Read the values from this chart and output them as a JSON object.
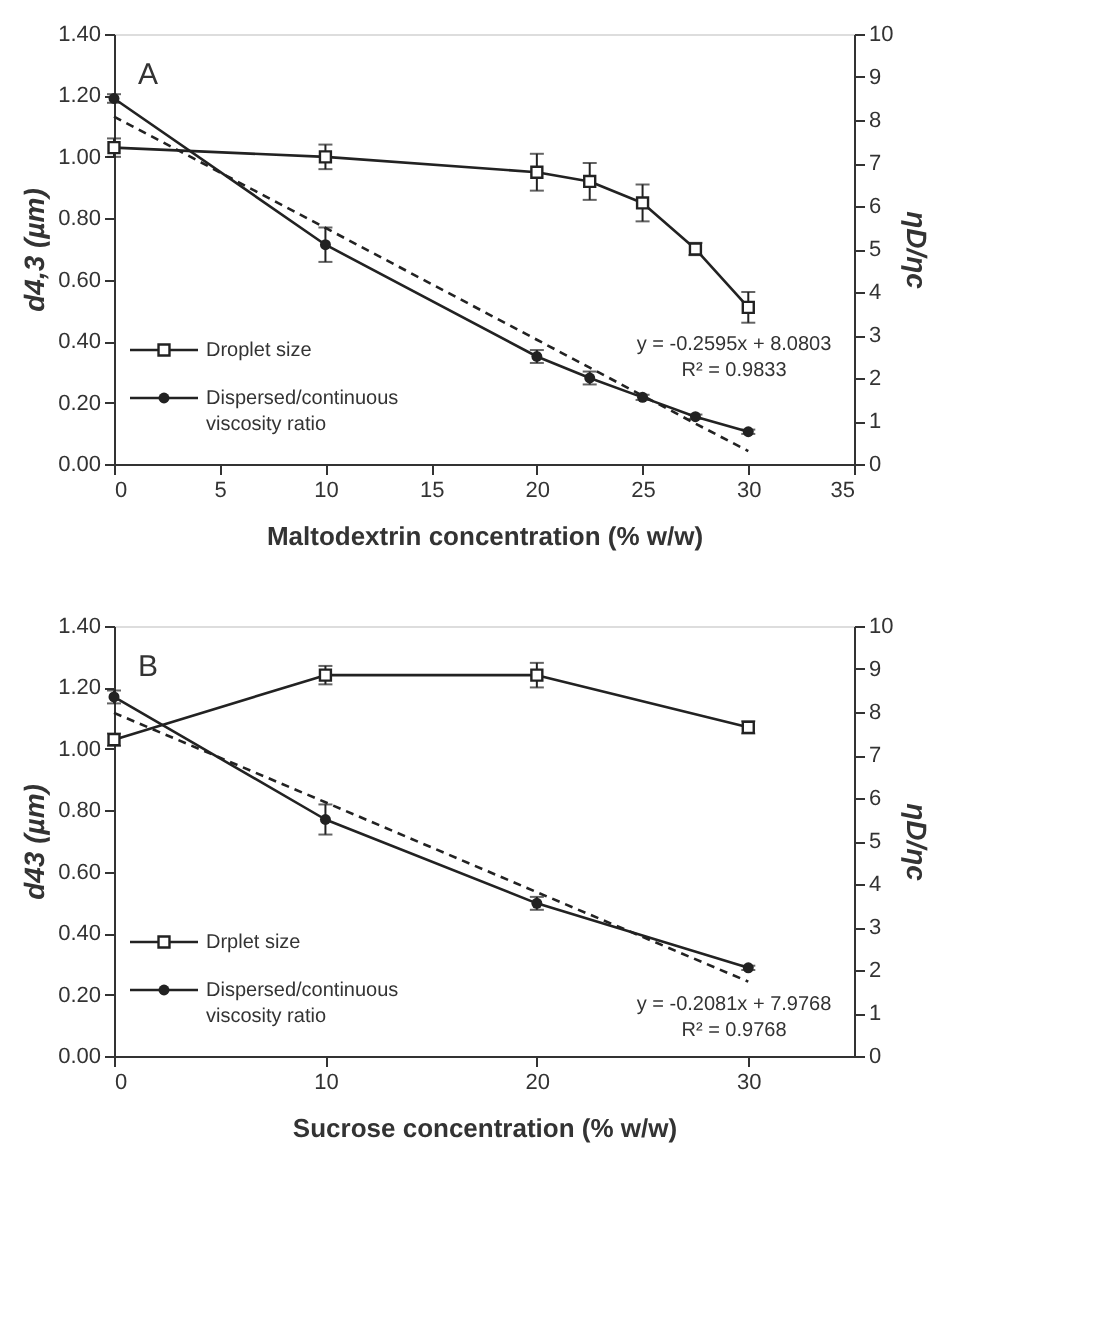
{
  "chart_data": [
    {
      "type": "line",
      "xlabel": "Maltodextrin concentration (% w/w)",
      "ylabel": "d4,3 (µm)",
      "y2label": "ηD/ηc",
      "x": [
        0,
        10,
        20,
        22.5,
        25,
        27.5,
        30
      ],
      "xlim": [
        0,
        35
      ],
      "xticks": [
        0,
        5,
        10,
        15,
        20,
        25,
        30,
        35
      ],
      "ylim": [
        0,
        1.4
      ],
      "yticks": [
        {
          "value": 0,
          "label": "0.00"
        },
        {
          "value": 0.2,
          "label": "0.20"
        },
        {
          "value": 0.4,
          "label": "0.40"
        },
        {
          "value": 0.6,
          "label": "0.60"
        },
        {
          "value": 0.8,
          "label": "0.80"
        },
        {
          "value": 1,
          "label": "1.00"
        },
        {
          "value": 1.2,
          "label": "1.20"
        },
        {
          "value": 1.4,
          "label": "1.40"
        }
      ],
      "y2lim": [
        0,
        10
      ],
      "y2ticks": [
        0,
        1,
        2,
        3,
        4,
        5,
        6,
        7,
        8,
        9,
        10
      ],
      "series": [
        {
          "name": "Droplet size",
          "color": "#222222",
          "marker": "square",
          "values": [
            1.03,
            1.0,
            0.95,
            0.92,
            0.85,
            0.7,
            0.51
          ],
          "errors": [
            0.03,
            0.04,
            0.06,
            0.06,
            0.06,
            0.02,
            0.05
          ]
        },
        {
          "name": "Dispersed/continuous viscosity ratio",
          "color": "#222222",
          "marker": "circle",
          "axis": "y2",
          "values": [
            8.5,
            5.1,
            2.5,
            2.0,
            1.55,
            1.1,
            0.75
          ],
          "errors": [
            0.1,
            0.4,
            0.15,
            0.15,
            0.06,
            0.05,
            0.05
          ]
        },
        {
          "type": "line",
          "color": "#222222",
          "line_style": "dashed",
          "marker": "none",
          "axis": "y2",
          "values": [
            8.08,
            5.49,
            2.89,
            2.24,
            1.59,
            0.94,
            0.3
          ]
        }
      ],
      "annotations": [
        "A",
        "y = -0.2595x + 8.0803",
        "R² = 0.9833"
      ],
      "legend": "bottom left",
      "grid": false
    },
    {
      "type": "line",
      "xlabel": "Sucrose concentration (% w/w)",
      "ylabel": "d43 (µm)",
      "y2label": "ηD/ηc",
      "x": [
        0,
        10,
        20,
        30
      ],
      "xlim": [
        0,
        35
      ],
      "xticks": [
        0,
        10,
        20,
        30
      ],
      "ylim": [
        0,
        1.4
      ],
      "yticks": [
        {
          "value": 0,
          "label": "0.00"
        },
        {
          "value": 0.2,
          "label": "0.20"
        },
        {
          "value": 0.4,
          "label": "0.40"
        },
        {
          "value": 0.6,
          "label": "0.60"
        },
        {
          "value": 0.8,
          "label": "0.80"
        },
        {
          "value": 1,
          "label": "1.00"
        },
        {
          "value": 1.2,
          "label": "1.20"
        },
        {
          "value": 1.4,
          "label": "1.40"
        }
      ],
      "y2lim": [
        0,
        10
      ],
      "y2ticks": [
        0,
        1,
        2,
        3,
        4,
        5,
        6,
        7,
        8,
        9,
        10
      ],
      "series": [
        {
          "name": "Drplet size",
          "color": "#222222",
          "marker": "square",
          "values": [
            1.03,
            1.24,
            1.24,
            1.07
          ],
          "errors": [
            0.02,
            0.03,
            0.04,
            0.02
          ]
        },
        {
          "name": "Dispersed/continuous viscosity ratio",
          "color": "#222222",
          "marker": "circle",
          "axis": "y2",
          "values": [
            8.35,
            5.5,
            3.55,
            2.05
          ],
          "errors": [
            0.15,
            0.35,
            0.15,
            0.05
          ]
        },
        {
          "type": "line",
          "color": "#222222",
          "line_style": "dashed",
          "marker": "none",
          "axis": "y2",
          "values": [
            7.98,
            5.9,
            3.81,
            1.73
          ]
        }
      ],
      "annotations": [
        "B",
        "y = -0.2081x + 7.9768",
        "R² = 0.9768"
      ],
      "legend": "bottom left",
      "grid": false
    }
  ]
}
